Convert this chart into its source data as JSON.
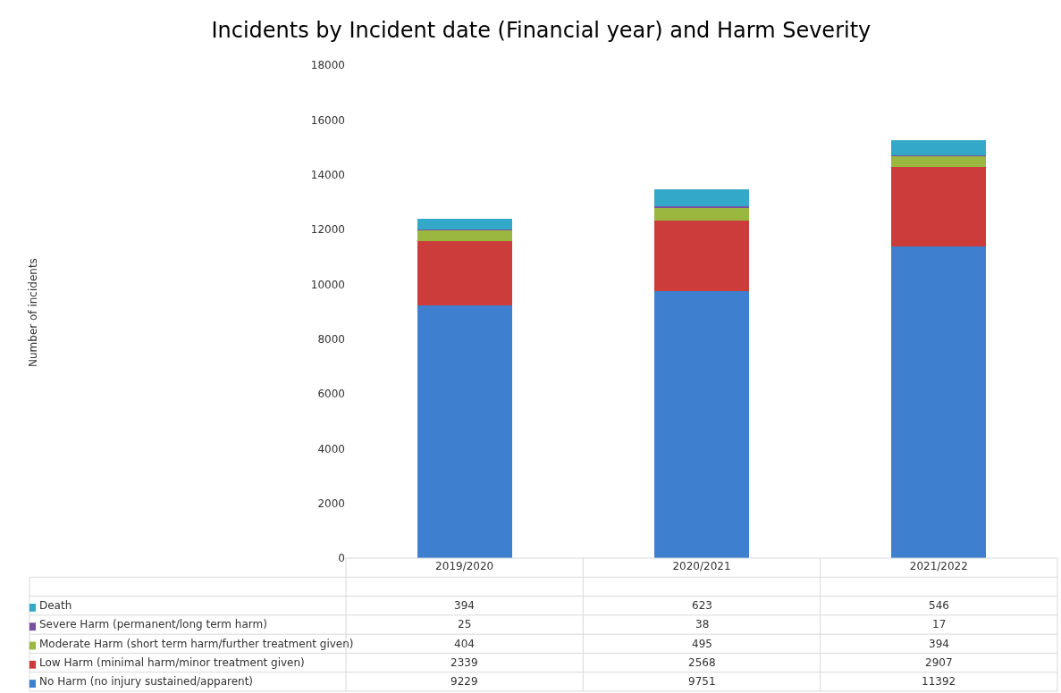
{
  "chart_data": {
    "type": "bar",
    "stacked": true,
    "data_labels": true,
    "title": "Incidents by Incident date (Financial year) and Harm Severity",
    "annotations": [
      "Number of incidents"
    ],
    "categories": [
      "2019/2020",
      "2020/2021",
      "2021/2022"
    ],
    "ylim": [
      0,
      18000
    ],
    "yticks": [
      0,
      2000,
      4000,
      6000,
      8000,
      10000,
      12000,
      14000,
      16000,
      18000
    ],
    "legend": "bottom left",
    "series": [
      {
        "name": "No Harm (no injury sustained/apparent)",
        "color": "#3f7fd0",
        "values": [
          9229,
          9751,
          11392
        ]
      },
      {
        "name": "Low Harm (minimal harm/minor treatment given)",
        "color": "#cc3c3a",
        "values": [
          2339,
          2568,
          2907
        ]
      },
      {
        "name": "Moderate Harm (short term harm/further treatment given)",
        "color": "#9ab840",
        "values": [
          404,
          495,
          394
        ]
      },
      {
        "name": "Severe Harm (permanent/long term harm)",
        "color": "#7a4fa0",
        "values": [
          25,
          38,
          17
        ]
      },
      {
        "name": "Death",
        "color": "#33a8c8",
        "values": [
          394,
          623,
          546
        ]
      }
    ]
  }
}
